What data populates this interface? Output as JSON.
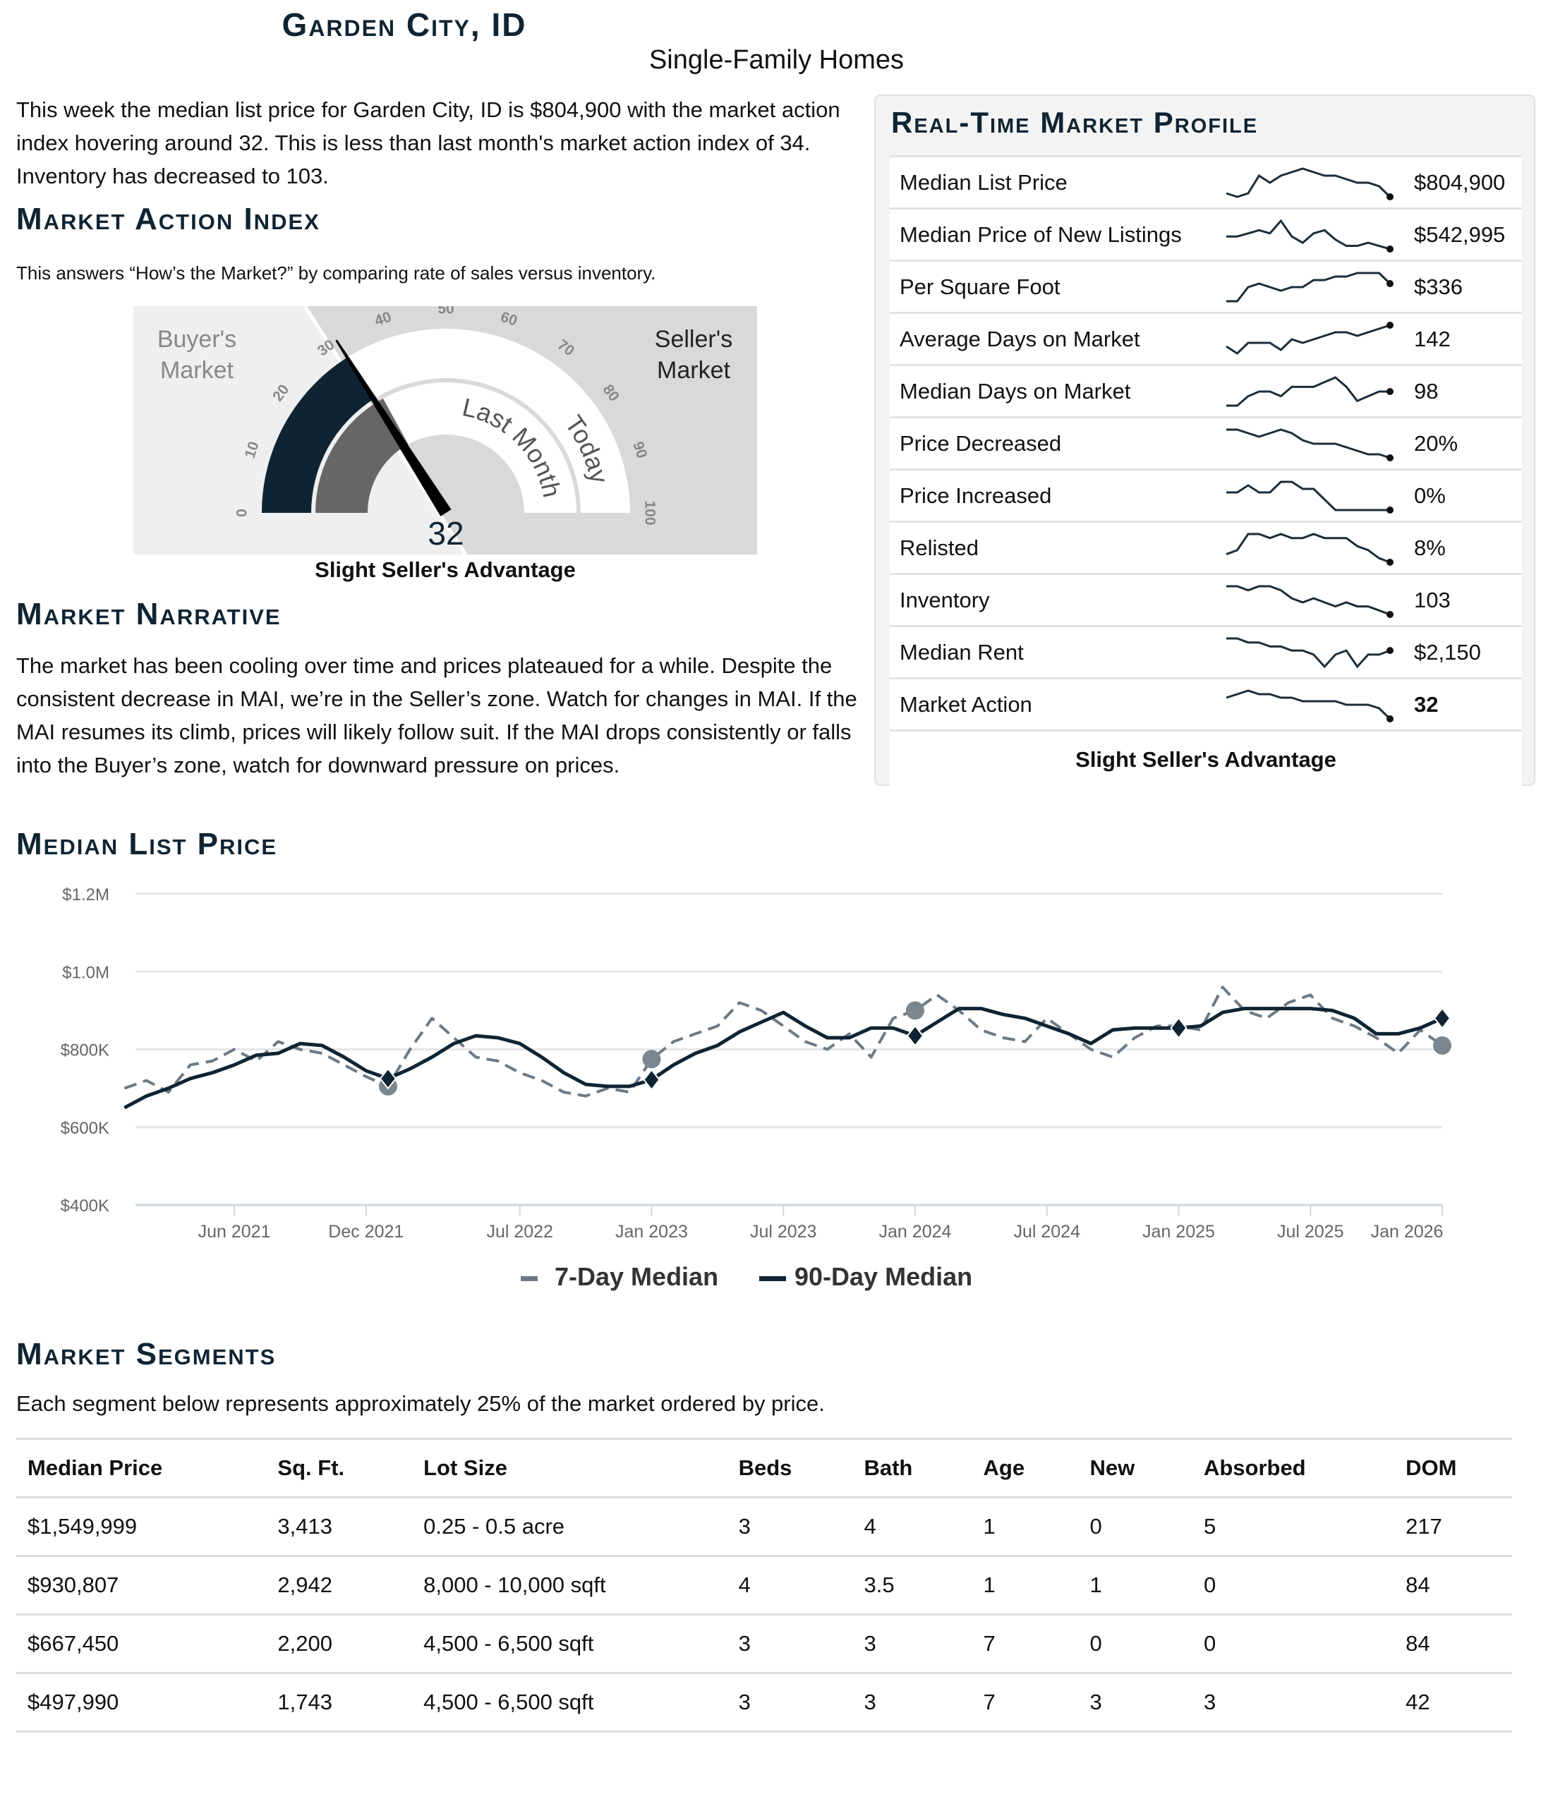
{
  "header": {
    "title": "Garden City, ID",
    "subtitle": "Single-Family Homes"
  },
  "intro": "This week the median list price for Garden City, ID is $804,900 with the market action index hovering around 32. This is less than last month's market action index of 34. Inventory has decreased to 103.",
  "mai": {
    "heading": "Market Action Index",
    "subtitle": "This answers “How’s the Market?” by comparing rate of sales versus inventory.",
    "today": 32,
    "last_month": 34,
    "value_label": "32",
    "buyers_label": [
      "Buyer's",
      "Market"
    ],
    "sellers_label": [
      "Seller's",
      "Market"
    ],
    "band_labels": {
      "last_month": "Last Month",
      "today": "Today"
    },
    "ticks": [
      "0",
      "10",
      "20",
      "30",
      "40",
      "50",
      "60",
      "70",
      "80",
      "90",
      "100"
    ],
    "caption": "Slight Seller's Advantage",
    "colors": {
      "today": "#0f2433",
      "last_month": "#666666",
      "buyers_bg": "#efefef",
      "sellers_bg": "#d9d9d9"
    }
  },
  "narrative": {
    "heading": "Market Narrative",
    "text": "The market has been cooling over time and prices plateaued for a while. Despite the consistent decrease in MAI, we’re in the Seller’s zone. Watch for changes in MAI. If the MAI resumes its climb, prices will likely follow suit. If the MAI drops consistently or falls into the Buyer’s zone, watch for downward pressure on prices."
  },
  "profile": {
    "title": "Real-Time Market Profile",
    "rows": [
      {
        "label": "Median List Price",
        "value": "$804,900",
        "trend": [
          3,
          2,
          3,
          8,
          6,
          8,
          9,
          10,
          9,
          8,
          8,
          7,
          6,
          6,
          5,
          2
        ]
      },
      {
        "label": "Median Price of New Listings",
        "value": "$542,995",
        "trend": [
          5,
          5,
          6,
          7,
          6,
          10,
          5,
          3,
          6,
          7,
          4,
          2,
          2,
          3,
          2,
          1
        ]
      },
      {
        "label": "Per Square Foot",
        "value": "$336",
        "trend": [
          1,
          1,
          5,
          6,
          5,
          4,
          5,
          5,
          7,
          7,
          8,
          8,
          9,
          9,
          9,
          6
        ]
      },
      {
        "label": "Average Days on Market",
        "value": "142",
        "trend": [
          3,
          1,
          4,
          4,
          4,
          2,
          5,
          4,
          5,
          6,
          7,
          7,
          6,
          7,
          8,
          9
        ]
      },
      {
        "label": "Median Days on Market",
        "value": "98",
        "trend": [
          1,
          1,
          3,
          4,
          4,
          3,
          5,
          5,
          5,
          6,
          7,
          5,
          2,
          3,
          4,
          4
        ]
      },
      {
        "label": "Price Decreased",
        "value": "20%",
        "trend": [
          9,
          9,
          8,
          7,
          8,
          9,
          8,
          6,
          5,
          5,
          5,
          4,
          3,
          2,
          2,
          1
        ]
      },
      {
        "label": "Price Increased",
        "value": "0%",
        "trend": [
          5,
          5,
          7,
          5,
          5,
          8,
          8,
          6,
          6,
          3,
          0,
          0,
          0,
          0,
          0,
          0
        ]
      },
      {
        "label": "Relisted",
        "value": "8%",
        "trend": [
          4,
          5,
          9,
          9,
          8,
          9,
          8,
          8,
          9,
          8,
          8,
          8,
          6,
          5,
          3,
          2
        ]
      },
      {
        "label": "Inventory",
        "value": "103",
        "trend": [
          8,
          8,
          7,
          8,
          8,
          7,
          5,
          4,
          5,
          4,
          3,
          4,
          3,
          3,
          2,
          1
        ]
      },
      {
        "label": "Median Rent",
        "value": "$2,150",
        "trend": [
          9,
          9,
          8,
          8,
          7,
          7,
          6,
          6,
          5,
          2,
          5,
          6,
          2,
          5,
          5,
          6
        ]
      },
      {
        "label": "Market Action",
        "value": "32",
        "trend": [
          8,
          9,
          10,
          9,
          9,
          8,
          8,
          7,
          7,
          7,
          7,
          6,
          6,
          6,
          5,
          2
        ]
      }
    ],
    "caption": "Slight Seller's Advantage"
  },
  "price_chart_heading": "Median List Price",
  "chart_data": {
    "type": "line",
    "ylim": [
      400000,
      1200000
    ],
    "yticks": [
      "$400K",
      "$600K",
      "$800K",
      "$1.0M",
      "$1.2M"
    ],
    "ytick_values": [
      400000,
      600000,
      800000,
      1000000,
      1200000
    ],
    "xticks": [
      "Jun 2021",
      "Dec 2021",
      "Jul 2022",
      "Jan 2023",
      "Jul 2023",
      "Jan 2024",
      "Jul 2024",
      "Jan 2025",
      "Jul 2025",
      "Jan 2026"
    ],
    "xtick_dates": [
      "2021-06",
      "2021-12",
      "2022-07",
      "2023-01",
      "2023-07",
      "2024-01",
      "2024-07",
      "2025-01",
      "2025-07",
      "2026-01"
    ],
    "x": [
      "2021-01",
      "2021-02",
      "2021-03",
      "2021-04",
      "2021-05",
      "2021-06",
      "2021-07",
      "2021-08",
      "2021-09",
      "2021-10",
      "2021-11",
      "2021-12",
      "2022-01",
      "2022-02",
      "2022-03",
      "2022-04",
      "2022-05",
      "2022-06",
      "2022-07",
      "2022-08",
      "2022-09",
      "2022-10",
      "2022-11",
      "2022-12",
      "2023-01",
      "2023-02",
      "2023-03",
      "2023-04",
      "2023-05",
      "2023-06",
      "2023-07",
      "2023-08",
      "2023-09",
      "2023-10",
      "2023-11",
      "2023-12",
      "2024-01",
      "2024-02",
      "2024-03",
      "2024-04",
      "2024-05",
      "2024-06",
      "2024-07",
      "2024-08",
      "2024-09",
      "2024-10",
      "2024-11",
      "2024-12",
      "2025-01",
      "2025-02",
      "2025-03",
      "2025-04",
      "2025-05",
      "2025-06",
      "2025-07",
      "2025-08",
      "2025-09",
      "2025-10",
      "2025-11",
      "2025-12",
      "2026-01"
    ],
    "series": [
      {
        "name": "7-Day Median",
        "color": "#6c7a86",
        "style": "dashed",
        "values": [
          700000,
          720000,
          690000,
          760000,
          770000,
          800000,
          770000,
          820000,
          800000,
          790000,
          760000,
          730000,
          705000,
          800000,
          880000,
          830000,
          780000,
          770000,
          740000,
          720000,
          690000,
          680000,
          700000,
          690000,
          775000,
          820000,
          840000,
          860000,
          920000,
          900000,
          860000,
          820000,
          800000,
          840000,
          780000,
          880000,
          900000,
          940000,
          900000,
          850000,
          830000,
          820000,
          880000,
          840000,
          800000,
          780000,
          830000,
          860000,
          860000,
          850000,
          960000,
          900000,
          880000,
          920000,
          940000,
          880000,
          860000,
          830000,
          790000,
          850000,
          810000
        ]
      },
      {
        "name": "90-Day Median",
        "color": "#0f2433",
        "style": "solid",
        "values": [
          650000,
          680000,
          700000,
          725000,
          740000,
          760000,
          785000,
          790000,
          815000,
          810000,
          780000,
          745000,
          725000,
          750000,
          780000,
          815000,
          835000,
          830000,
          815000,
          780000,
          740000,
          710000,
          705000,
          705000,
          722000,
          760000,
          790000,
          810000,
          845000,
          870000,
          895000,
          860000,
          830000,
          830000,
          855000,
          855000,
          835000,
          870000,
          905000,
          905000,
          890000,
          880000,
          860000,
          840000,
          815000,
          850000,
          855000,
          855000,
          855000,
          860000,
          895000,
          905000,
          905000,
          905000,
          905000,
          900000,
          880000,
          840000,
          840000,
          855000,
          880000
        ]
      }
    ],
    "markers": [
      "2022-01",
      "2023-01",
      "2024-01",
      "2025-01",
      "2026-01"
    ],
    "legend": "bottom",
    "grid": true
  },
  "segments": {
    "heading": "Market Segments",
    "subtitle": "Each segment below represents approximately 25% of the market ordered by price.",
    "columns": [
      "Median Price",
      "Sq. Ft.",
      "Lot Size",
      "Beds",
      "Bath",
      "Age",
      "New",
      "Absorbed",
      "DOM"
    ],
    "rows": [
      [
        "$1,549,999",
        "3,413",
        "0.25 - 0.5 acre",
        "3",
        "4",
        "1",
        "0",
        "5",
        "217"
      ],
      [
        "$930,807",
        "2,942",
        "8,000 - 10,000 sqft",
        "4",
        "3.5",
        "1",
        "1",
        "0",
        "84"
      ],
      [
        "$667,450",
        "2,200",
        "4,500 - 6,500 sqft",
        "3",
        "3",
        "7",
        "0",
        "0",
        "84"
      ],
      [
        "$497,990",
        "1,743",
        "4,500 - 6,500 sqft",
        "3",
        "3",
        "7",
        "3",
        "3",
        "42"
      ]
    ]
  }
}
